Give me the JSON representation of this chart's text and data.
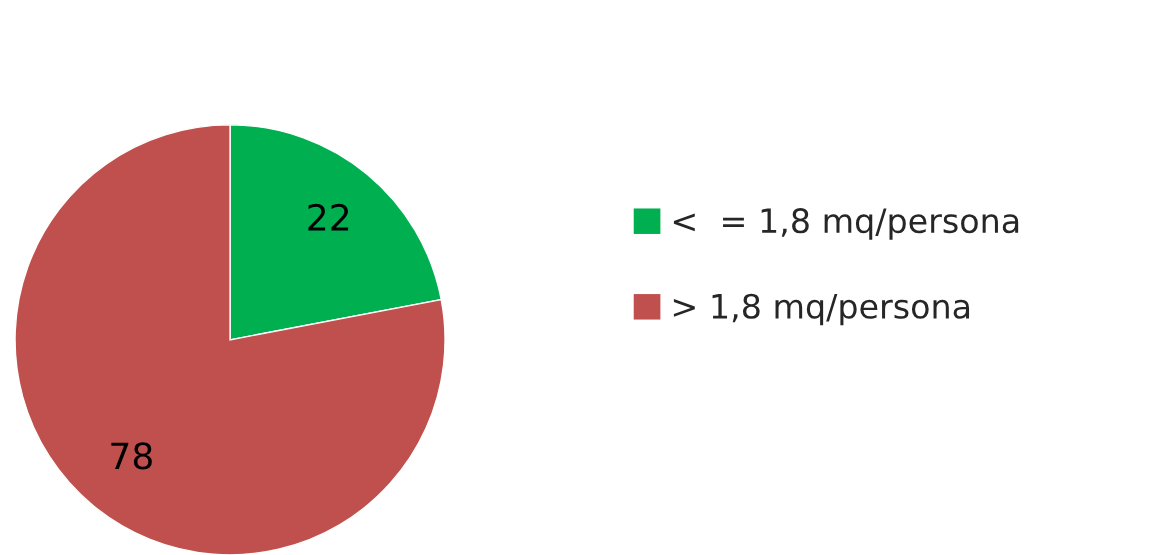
{
  "chart_data": {
    "type": "pie",
    "categories": [
      "<  = 1,8 mq/persona",
      "> 1,8 mq/persona"
    ],
    "values": [
      22,
      78
    ],
    "colors": [
      "#00b050",
      "#c0504d"
    ],
    "data_labels": true,
    "legend": "right"
  }
}
